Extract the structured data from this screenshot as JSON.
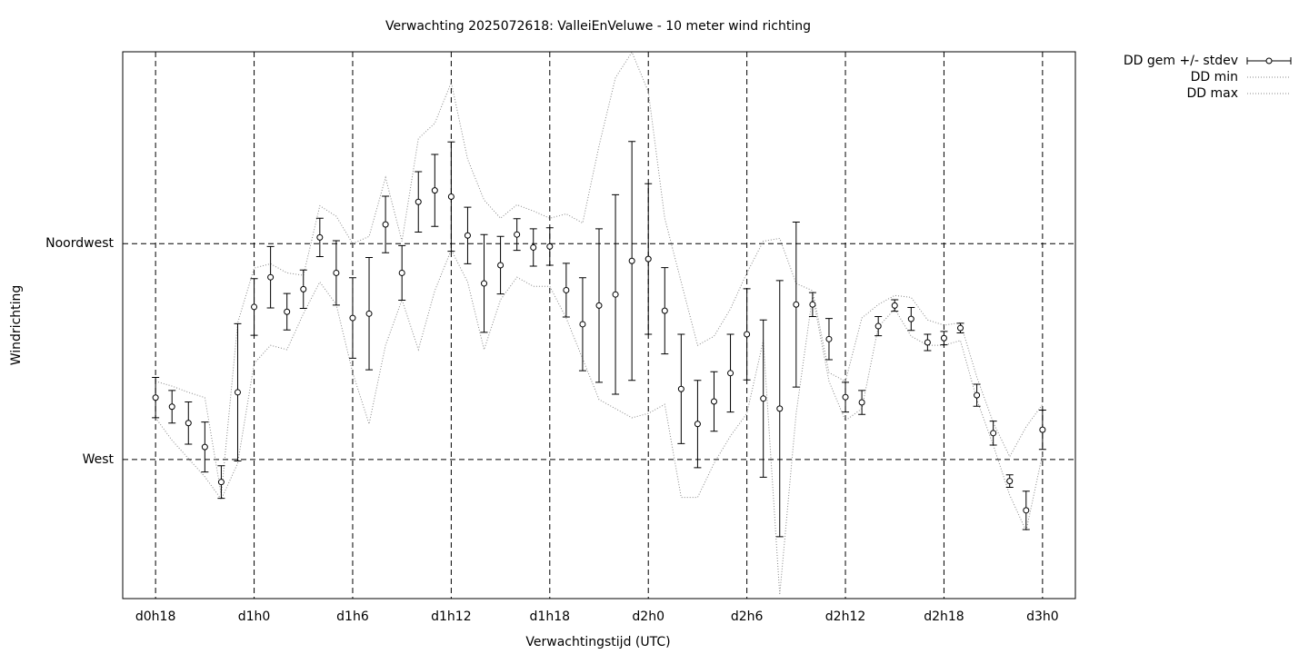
{
  "chart_data": {
    "type": "errorbar",
    "title": "Verwachting 2025072618: ValleiEnVeluwe - 10 meter wind richting",
    "xlabel": "Verwachtingstijd (UTC)",
    "ylabel": "Windrichting",
    "x": [
      18,
      19,
      20,
      21,
      22,
      23,
      24,
      25,
      26,
      27,
      28,
      29,
      30,
      31,
      32,
      33,
      34,
      35,
      36,
      37,
      38,
      39,
      40,
      41,
      42,
      43,
      44,
      45,
      46,
      47,
      48,
      49,
      50,
      51,
      52,
      53,
      54,
      55,
      56,
      57,
      58,
      59,
      60,
      61,
      62,
      63,
      64,
      65,
      66,
      67,
      68,
      69,
      70,
      71,
      72
    ],
    "series": [
      {
        "name": "DD gem +/- stdev",
        "color": "#000000",
        "values": [
          282.9,
          281.0,
          277.6,
          272.6,
          265.3,
          284.0,
          301.8,
          308.0,
          300.8,
          305.5,
          316.3,
          308.9,
          299.5,
          300.4,
          319.0,
          308.9,
          323.7,
          326.1,
          324.8,
          316.7,
          306.7,
          310.5,
          316.9,
          314.2,
          314.4,
          305.3,
          298.2,
          302.1,
          304.4,
          311.4,
          311.8,
          301.0,
          284.7,
          277.4,
          282.1,
          288.0,
          296.1,
          282.7,
          280.6,
          302.3,
          302.3,
          295.1,
          283.0,
          281.9,
          297.8,
          302.1,
          299.3,
          294.4,
          295.3,
          297.4,
          283.4,
          275.5,
          265.5,
          259.4,
          276.2
        ],
        "errors": [
          4.2,
          3.4,
          4.4,
          5.2,
          3.4,
          14.3,
          5.9,
          6.4,
          3.8,
          4.0,
          4.0,
          6.7,
          8.4,
          11.7,
          5.9,
          5.7,
          6.3,
          7.5,
          11.4,
          5.9,
          10.2,
          6.0,
          3.3,
          3.9,
          3.9,
          5.6,
          9.7,
          16.0,
          20.8,
          24.9,
          15.7,
          9.0,
          11.4,
          9.1,
          6.2,
          8.1,
          9.5,
          16.4,
          26.7,
          17.2,
          2.5,
          4.3,
          3.1,
          2.5,
          2.0,
          1.2,
          2.4,
          1.7,
          1.4,
          1.0,
          2.3,
          2.5,
          1.3,
          4.0,
          4.1
        ]
      },
      {
        "name": "DD min",
        "color": "#888888",
        "values": [
          278.7,
          274.0,
          270.2,
          266.4,
          261.7,
          269.2,
          290.0,
          293.8,
          292.9,
          300.4,
          307.0,
          302.3,
          288.1,
          277.4,
          293.8,
          303.3,
          292.9,
          305.2,
          313.7,
          307.0,
          292.9,
          303.3,
          308.0,
          306.1,
          306.1,
          299.5,
          291.0,
          282.5,
          280.6,
          278.7,
          279.6,
          281.5,
          262.1,
          262.1,
          269.2,
          274.9,
          279.6,
          294.8,
          241.8,
          279.6,
          304.2,
          286.3,
          278.1,
          280.6,
          297.6,
          301.4,
          295.7,
          293.8,
          293.8,
          294.8,
          282.5,
          273.0,
          262.6,
          255.1,
          271.1
        ]
      },
      {
        "name": "DD max",
        "color": "#888888",
        "values": [
          286.3,
          285.3,
          284.0,
          282.9,
          262.6,
          298.5,
          309.9,
          310.8,
          308.9,
          308.4,
          322.9,
          320.7,
          315.0,
          316.5,
          328.8,
          315.5,
          336.9,
          340.1,
          348.6,
          332.6,
          324.1,
          320.3,
          323.1,
          321.8,
          320.3,
          321.2,
          319.3,
          335.4,
          349.6,
          354.9,
          346.7,
          320.3,
          307.0,
          293.8,
          295.7,
          301.4,
          308.9,
          315.5,
          316.1,
          306.7,
          305.2,
          288.1,
          286.3,
          299.5,
          302.3,
          304.2,
          303.8,
          299.1,
          298.0,
          298.5,
          287.2,
          277.7,
          270.6,
          276.8,
          281.5
        ]
      }
    ],
    "xlim": [
      16,
      74
    ],
    "xticks": [
      {
        "value": 18,
        "label": "d0h18"
      },
      {
        "value": 24,
        "label": "d1h0"
      },
      {
        "value": 30,
        "label": "d1h6"
      },
      {
        "value": 36,
        "label": "d1h12"
      },
      {
        "value": 42,
        "label": "d1h18"
      },
      {
        "value": 48,
        "label": "d2h0"
      },
      {
        "value": 54,
        "label": "d2h6"
      },
      {
        "value": 60,
        "label": "d2h12"
      },
      {
        "value": 66,
        "label": "d2h18"
      },
      {
        "value": 72,
        "label": "d3h0"
      }
    ],
    "ylim": [
      241,
      355
    ],
    "yticks": [
      {
        "value": 270,
        "label": "West"
      },
      {
        "value": 315,
        "label": "Noordwest"
      }
    ],
    "grid": true,
    "legend": "outside-top-right"
  }
}
